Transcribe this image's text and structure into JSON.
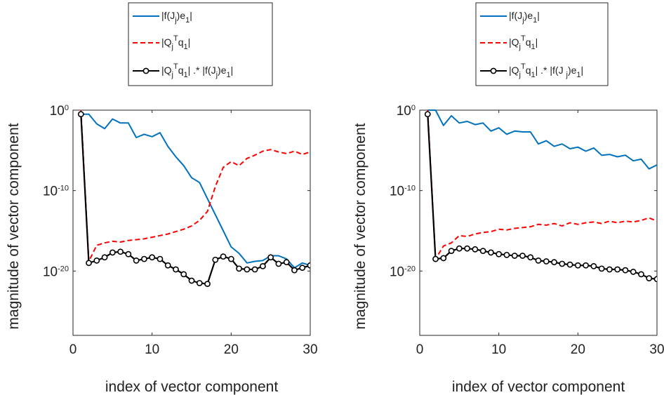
{
  "chart_data": [
    {
      "type": "line",
      "yscale": "log",
      "xlabel": "index of vector component",
      "ylabel": "magnitude of vector component",
      "xlim": [
        0,
        30
      ],
      "ylim": [
        1e-28,
        1.0
      ],
      "xticks": [
        0,
        10,
        20,
        30
      ],
      "xtick_labels": [
        "0",
        "10",
        "20",
        "30"
      ],
      "yticks": [
        1.0,
        1e-10,
        1e-20
      ],
      "ytick_labels": [
        {
          "base": "10",
          "exp": "0"
        },
        {
          "base": "10",
          "exp": "-10"
        },
        {
          "base": "10",
          "exp": "-20"
        }
      ],
      "grid": false,
      "legend_position": "above",
      "series": [
        {
          "name": "|f(J_j)e_1|",
          "legend_parts": [
            [
              "|f(J",
              "n"
            ],
            [
              "j",
              "sub"
            ],
            [
              ")e",
              "n"
            ],
            [
              "1",
              "sub"
            ],
            [
              "|",
              "n"
            ]
          ],
          "color": "#0072BD",
          "dash": "solid",
          "marker": "none",
          "x": [
            1,
            2,
            3,
            4,
            5,
            6,
            7,
            8,
            9,
            10,
            11,
            12,
            13,
            14,
            15,
            16,
            17,
            18,
            19,
            20,
            21,
            22,
            23,
            24,
            25,
            26,
            27,
            28,
            29,
            30
          ],
          "log10": [
            -0.5,
            -0.5,
            -1.7,
            -2.3,
            -1.1,
            -1.6,
            -1.6,
            -3.4,
            -3.0,
            -3.3,
            -2.8,
            -4.5,
            -5.8,
            -6.9,
            -8.4,
            -9.0,
            -11.0,
            -13.0,
            -15.0,
            -17.0,
            -17.8,
            -19.0,
            -18.8,
            -18.7,
            -18.1,
            -18.1,
            -18.5,
            -19.6,
            -19.0,
            -19.3
          ]
        },
        {
          "name": "|Q_j^T q_1|",
          "legend_parts": [
            [
              "|Q",
              "n"
            ],
            [
              "j",
              "sub"
            ],
            [
              "T",
              "sup"
            ],
            [
              "q",
              "n"
            ],
            [
              "1",
              "sub"
            ],
            [
              "|",
              "n"
            ]
          ],
          "color": "#FF0000",
          "dash": "dashed",
          "marker": "none",
          "x": [
            1,
            2,
            3,
            4,
            5,
            6,
            7,
            8,
            9,
            10,
            11,
            12,
            13,
            14,
            15,
            16,
            17,
            18,
            19,
            20,
            21,
            22,
            23,
            24,
            25,
            26,
            27,
            28,
            29,
            30
          ],
          "log10": [
            0,
            -18.8,
            -16.8,
            -16.5,
            -16.3,
            -16.4,
            -16.2,
            -16.1,
            -16.0,
            -15.8,
            -15.6,
            -15.4,
            -15.1,
            -14.8,
            -14.4,
            -13.7,
            -12.6,
            -9.5,
            -7.1,
            -6.4,
            -6.9,
            -6.0,
            -5.6,
            -5.1,
            -4.9,
            -5.2,
            -5.4,
            -5.1,
            -5.5,
            -5.2
          ]
        },
        {
          "name": "|Q_j^T q_1| .* |f(J_j)e_1|",
          "legend_parts": [
            [
              "|Q",
              "n"
            ],
            [
              "j",
              "sub"
            ],
            [
              "T",
              "sup"
            ],
            [
              "q",
              "n"
            ],
            [
              "1",
              "sub"
            ],
            [
              "| .* |f(J",
              "n"
            ],
            [
              "j",
              "sub"
            ],
            [
              ")e",
              "n"
            ],
            [
              "1",
              "sub"
            ],
            [
              "|",
              "n"
            ]
          ],
          "color": "#000000",
          "dash": "solid",
          "marker": "circle",
          "x": [
            1,
            2,
            3,
            4,
            5,
            6,
            7,
            8,
            9,
            10,
            11,
            12,
            13,
            14,
            15,
            16,
            17,
            18,
            19,
            20,
            21,
            22,
            23,
            24,
            25,
            26,
            27,
            28,
            29,
            30
          ],
          "log10": [
            -0.5,
            -19.0,
            -18.7,
            -18.3,
            -17.7,
            -17.6,
            -17.9,
            -18.7,
            -18.5,
            -18.3,
            -18.5,
            -19.3,
            -19.8,
            -20.4,
            -21.2,
            -21.5,
            -21.6,
            -18.6,
            -18.2,
            -18.5,
            -19.7,
            -19.8,
            -19.8,
            -19.4,
            -18.3,
            -19.1,
            -18.9,
            -19.9,
            -19.6,
            -19.3
          ]
        }
      ]
    },
    {
      "type": "line",
      "yscale": "log",
      "xlabel": "index of vector component",
      "ylabel": "magnitude of vector component",
      "xlim": [
        0,
        30
      ],
      "ylim": [
        1e-28,
        1.0
      ],
      "xticks": [
        0,
        10,
        20,
        30
      ],
      "xtick_labels": [
        "0",
        "10",
        "20",
        "30"
      ],
      "yticks": [
        1.0,
        1e-10,
        1e-20
      ],
      "ytick_labels": [
        {
          "base": "10",
          "exp": "0"
        },
        {
          "base": "10",
          "exp": "-10"
        },
        {
          "base": "10",
          "exp": "-20"
        }
      ],
      "grid": false,
      "legend_position": "above",
      "series": [
        {
          "name": "|f(J_j)e_1|",
          "legend_parts": [
            [
              "|f(J",
              "n"
            ],
            [
              "j",
              "sub"
            ],
            [
              ")e",
              "n"
            ],
            [
              "1",
              "sub"
            ],
            [
              "|",
              "n"
            ]
          ],
          "color": "#0072BD",
          "dash": "solid",
          "marker": "none",
          "x": [
            1,
            2,
            3,
            4,
            5,
            6,
            7,
            8,
            9,
            10,
            11,
            12,
            13,
            14,
            15,
            16,
            17,
            18,
            19,
            20,
            21,
            22,
            23,
            24,
            25,
            26,
            27,
            28,
            29,
            30
          ],
          "log10": [
            0,
            0,
            -1.9,
            -0.7,
            -1.6,
            -1.4,
            -1.8,
            -1.6,
            -2.6,
            -2.2,
            -3.0,
            -2.6,
            -2.7,
            -2.7,
            -4.2,
            -3.8,
            -4.5,
            -4.2,
            -4.8,
            -4.6,
            -5.1,
            -4.7,
            -5.6,
            -5.5,
            -5.8,
            -5.6,
            -6.3,
            -6.1,
            -7.3,
            -6.8
          ]
        },
        {
          "name": "|Q_j^T q_1|",
          "legend_parts": [
            [
              "|Q",
              "n"
            ],
            [
              "j",
              "sub"
            ],
            [
              "T",
              "sup"
            ],
            [
              "q",
              "n"
            ],
            [
              "1",
              "sub"
            ],
            [
              "|",
              "n"
            ]
          ],
          "color": "#FF0000",
          "dash": "dashed",
          "marker": "none",
          "x": [
            1,
            2,
            3,
            4,
            5,
            6,
            7,
            8,
            9,
            10,
            11,
            12,
            13,
            14,
            15,
            16,
            17,
            18,
            19,
            20,
            21,
            22,
            23,
            24,
            25,
            26,
            27,
            28,
            29,
            30
          ],
          "log10": [
            0,
            -18.5,
            -16.9,
            -16.5,
            -15.6,
            -15.7,
            -15.4,
            -15.2,
            -15.1,
            -14.8,
            -14.9,
            -14.7,
            -14.6,
            -14.5,
            -14.2,
            -14.3,
            -14.1,
            -14.4,
            -14.0,
            -14.2,
            -14.0,
            -13.9,
            -14.1,
            -13.8,
            -14.0,
            -13.8,
            -13.9,
            -13.7,
            -13.4,
            -13.8
          ]
        },
        {
          "name": "|Q_j^T q_1| .* |f(J_j)e_1|",
          "legend_parts": [
            [
              "|Q",
              "n"
            ],
            [
              "j",
              "sub"
            ],
            [
              "T",
              "sup"
            ],
            [
              "q",
              "n"
            ],
            [
              "1",
              "sub"
            ],
            [
              "| .* |f(J ",
              "n"
            ],
            [
              "j",
              "sub"
            ],
            [
              ")e",
              "n"
            ],
            [
              "1",
              "sub"
            ],
            [
              "|",
              "n"
            ]
          ],
          "color": "#000000",
          "dash": "solid",
          "marker": "circle",
          "x": [
            1,
            2,
            3,
            4,
            5,
            6,
            7,
            8,
            9,
            10,
            11,
            12,
            13,
            14,
            15,
            16,
            17,
            18,
            19,
            20,
            21,
            22,
            23,
            24,
            25,
            26,
            27,
            28,
            29,
            30
          ],
          "log10": [
            -0.5,
            -18.5,
            -18.4,
            -17.5,
            -17.2,
            -17.2,
            -17.3,
            -17.5,
            -17.7,
            -17.9,
            -18.0,
            -18.1,
            -18.1,
            -18.3,
            -18.7,
            -18.8,
            -18.9,
            -19.1,
            -19.2,
            -19.3,
            -19.3,
            -19.4,
            -19.7,
            -19.8,
            -19.8,
            -19.9,
            -20.1,
            -20.4,
            -20.9,
            -21.0
          ]
        }
      ]
    }
  ]
}
